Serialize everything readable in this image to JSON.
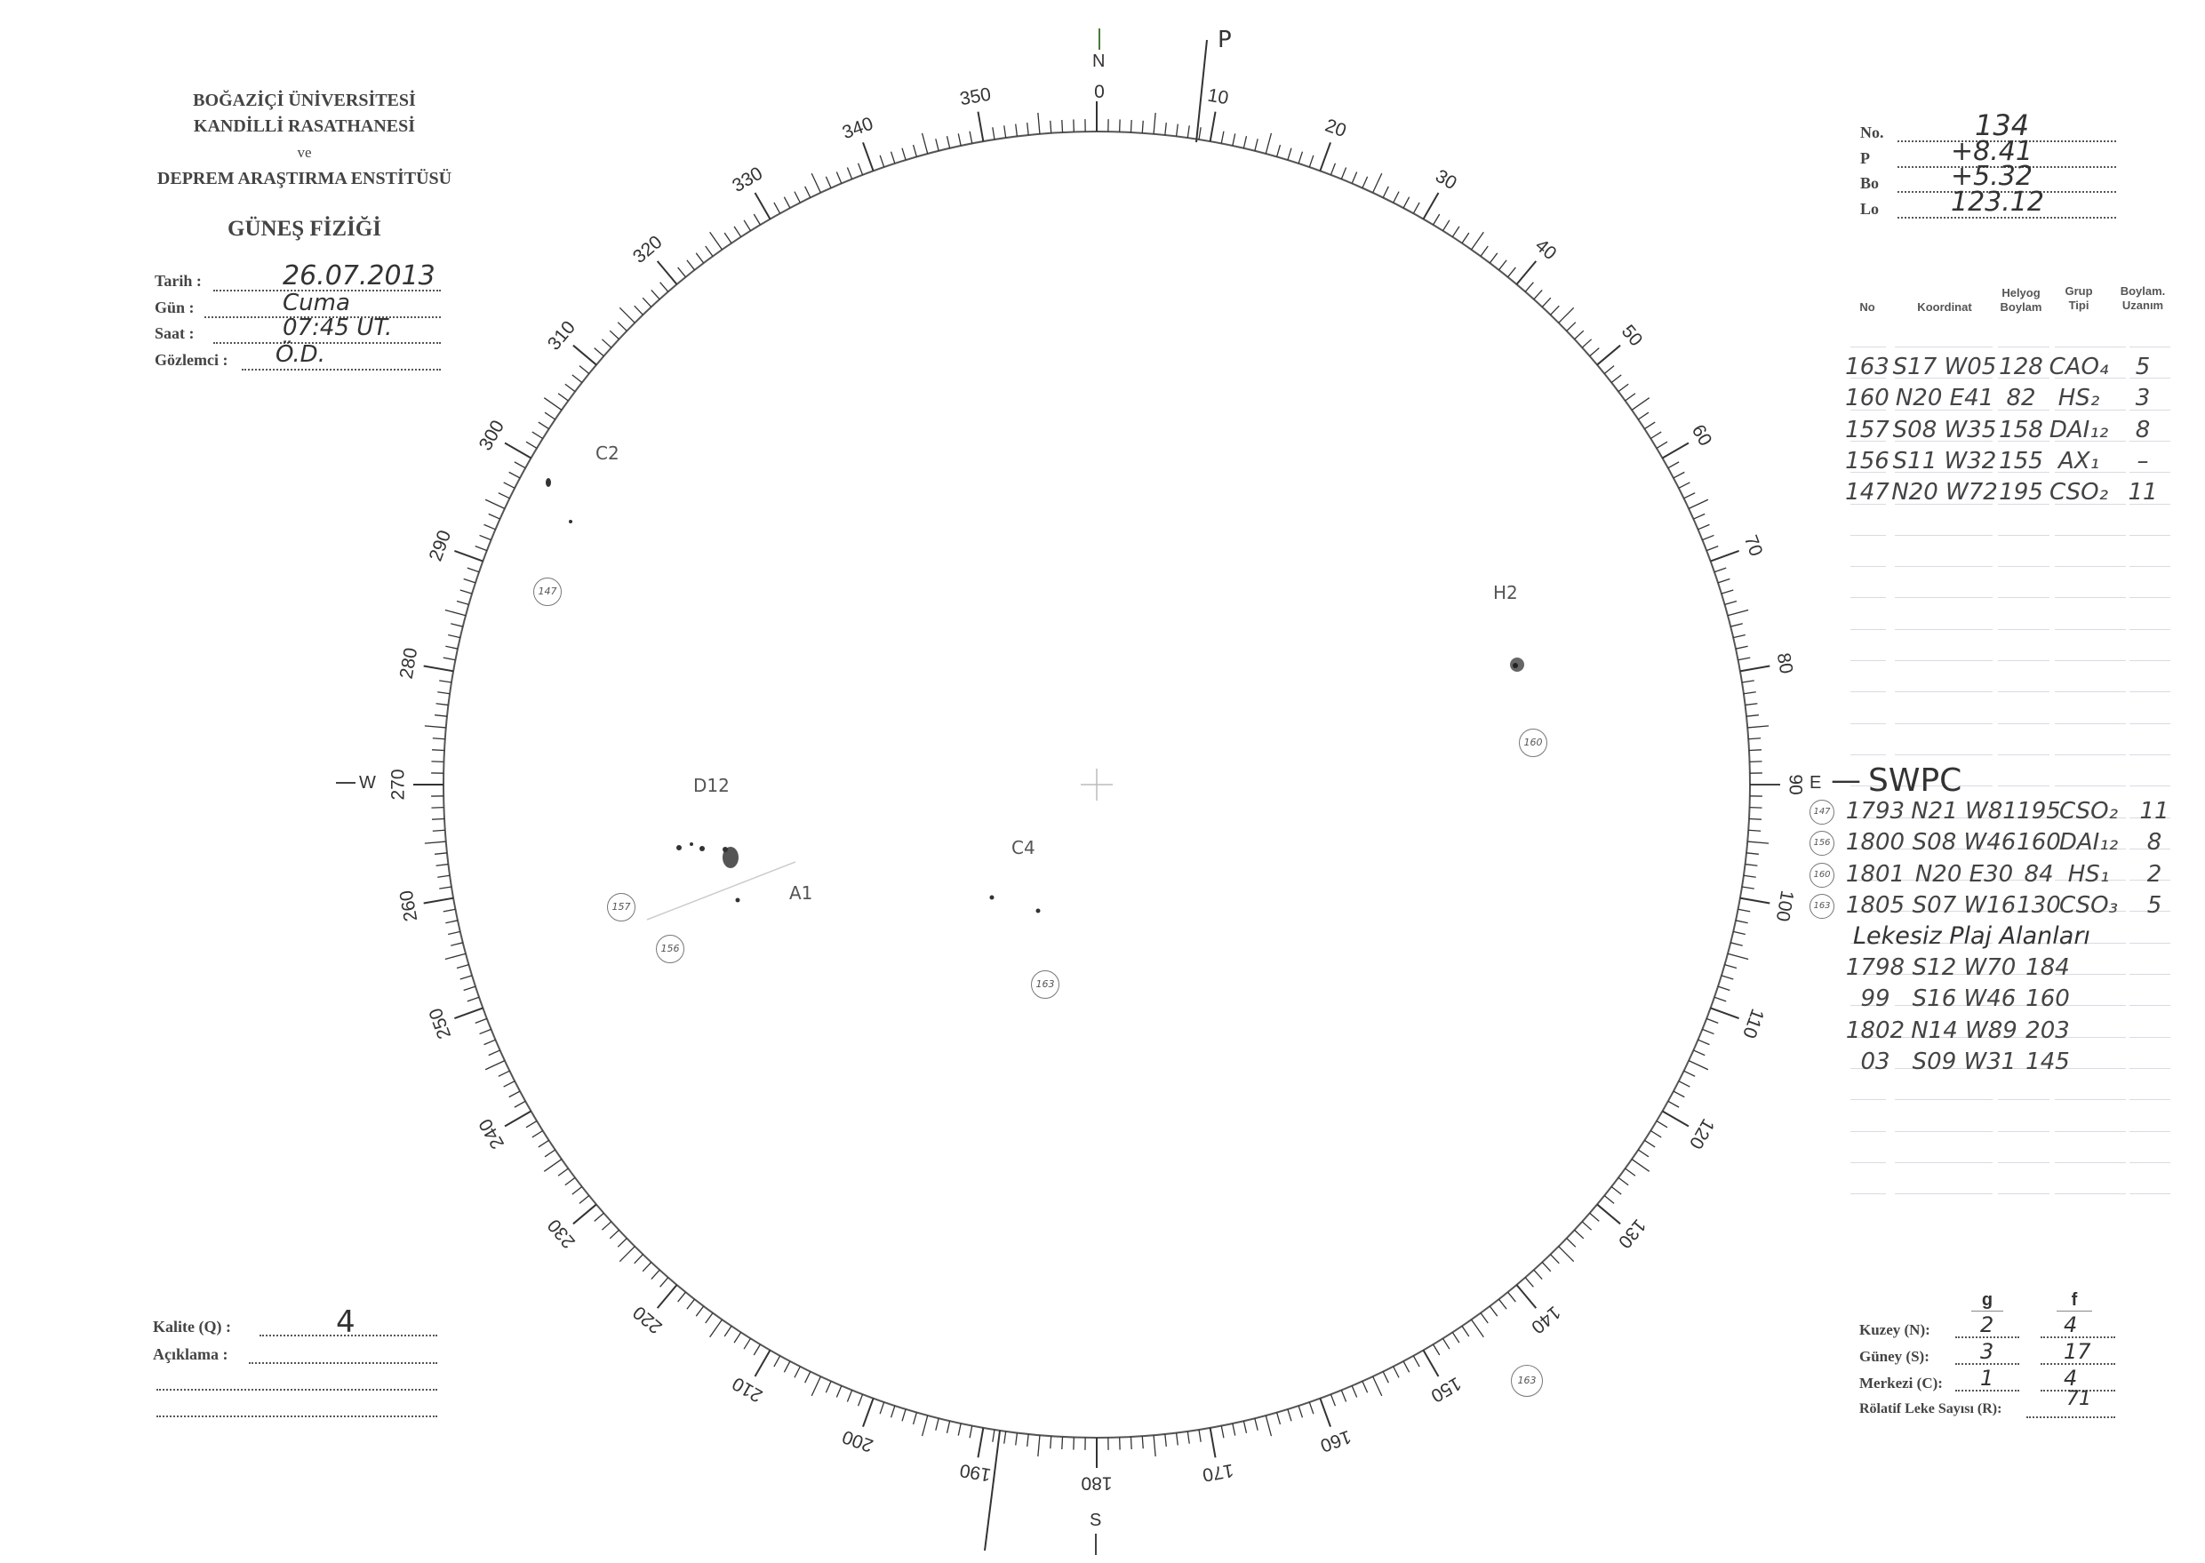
{
  "header": {
    "line1": "BOĞAZİÇİ ÜNİVERSİTESİ",
    "line2": "KANDİLLİ RASATHANESİ",
    "line3": "ve",
    "line4": "DEPREM ARAŞTIRMA ENSTİTÜSÜ",
    "title": "GÜNEŞ FİZİĞİ"
  },
  "info": [
    {
      "label": "Tarih :",
      "value": "26.07.2013"
    },
    {
      "label": "Gün :",
      "value": "Cuma"
    },
    {
      "label": "Saat :",
      "value": "07:45 UT."
    },
    {
      "label": "Gözlemci :",
      "value": "Ö.D."
    }
  ],
  "quality": {
    "kalite_label": "Kalite (Q) :",
    "kalite_value": "4",
    "aciklama_label": "Açıklama :"
  },
  "params": [
    {
      "label": "No.",
      "value": "134"
    },
    {
      "label": "P",
      "value": "+8.41"
    },
    {
      "label": "Bo",
      "value": "+5.32"
    },
    {
      "label": "Lo",
      "value": "123.12"
    }
  ],
  "table": {
    "headers": [
      "No",
      "Koordinat",
      "Helyog\nBoylam",
      "Grup\nTipi",
      "Boylam.\nUzanım"
    ],
    "rows": [
      [
        "163",
        "S17 W05",
        "128",
        "CAO₄",
        "5"
      ],
      [
        "160",
        "N20 E41",
        "82",
        "HS₂",
        "3"
      ],
      [
        "157",
        "S08 W35",
        "158",
        "DAI₁₂",
        "8"
      ],
      [
        "156",
        "S11 W32",
        "155",
        "AX₁",
        "–"
      ],
      [
        "147",
        "N20 W72",
        "195",
        "CSO₂",
        "11"
      ]
    ]
  },
  "swpc": {
    "title": "SWPC",
    "rows": [
      [
        "147",
        "1793",
        "N21 W81",
        "195",
        "CSO₂",
        "11"
      ],
      [
        "156",
        "1800",
        "S08 W46",
        "160",
        "DAI₁₂",
        "8"
      ],
      [
        "160",
        "1801",
        "N20 E30",
        "84",
        "HS₁",
        "2"
      ],
      [
        "163",
        "1805",
        "S07 W16",
        "130",
        "CSO₃",
        "5"
      ]
    ],
    "plage_title": "Lekesiz Plaj Alanları",
    "plage_rows": [
      [
        "1798",
        "S12 W70",
        "184"
      ],
      [
        "99",
        "S16 W46",
        "160"
      ],
      [
        "1802",
        "N14 W89",
        "203"
      ],
      [
        "03",
        "S09 W31",
        "145"
      ]
    ]
  },
  "counts": {
    "col_g": "g",
    "col_f": "f",
    "rows": [
      {
        "label": "Kuzey (N):",
        "g": "2",
        "f": "4"
      },
      {
        "label": "Güney (S):",
        "g": "3",
        "f": "17"
      },
      {
        "label": "Merkezi (C):",
        "g": "1",
        "f": "4"
      }
    ],
    "r_label": "Rölatif Leke Sayısı (R):",
    "r_value": "71"
  },
  "disk": {
    "north": "N",
    "east": "E",
    "west": "W",
    "south": "S",
    "p_mark": "P",
    "ring_labels": [
      "0",
      "10",
      "20",
      "30",
      "40",
      "50",
      "60",
      "70",
      "80",
      "90",
      "100",
      "110",
      "120",
      "130",
      "140",
      "150",
      "160",
      "170",
      "180",
      "190",
      "200",
      "210",
      "220",
      "230",
      "240",
      "250",
      "260",
      "270",
      "280",
      "290",
      "300",
      "310",
      "320",
      "330",
      "340",
      "350"
    ],
    "groups": {
      "c2": "C2",
      "h2": "H2",
      "d12": "D12",
      "a1": "A1",
      "c4": "C4",
      "n147": "147",
      "n160": "160",
      "n157": "157",
      "n156": "156",
      "n163": "163",
      "n163b": "163"
    }
  }
}
